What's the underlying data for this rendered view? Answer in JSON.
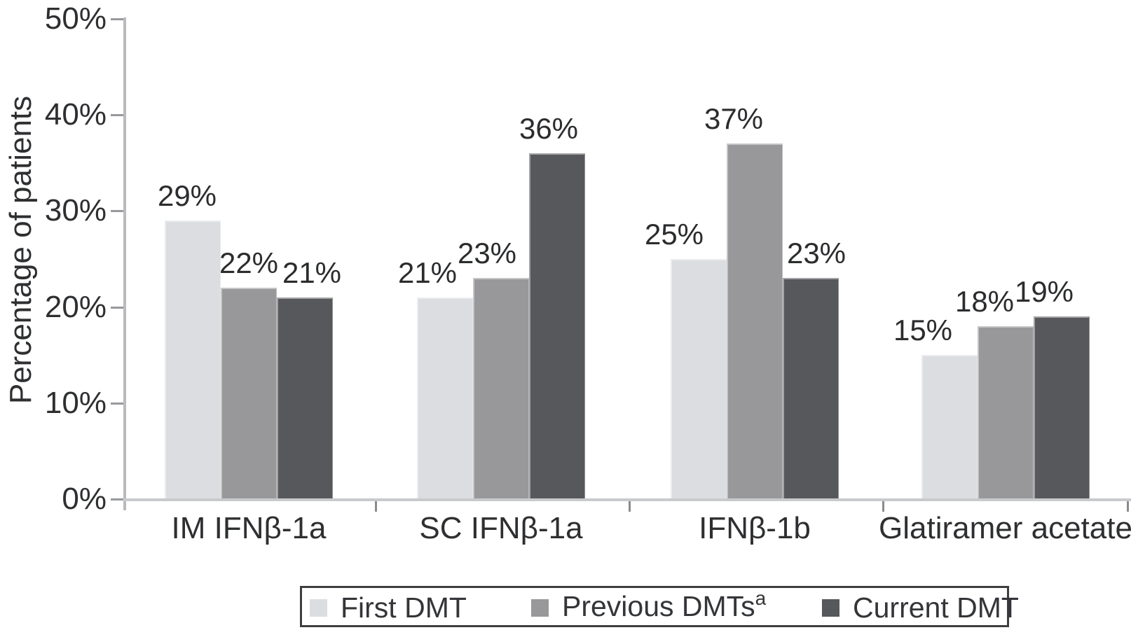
{
  "chart_data": {
    "type": "bar",
    "title": "",
    "ylabel": "Percentage of patients",
    "xlabel": "",
    "ylim": [
      0,
      50
    ],
    "yticks": [
      {
        "value": 0,
        "label": "0%"
      },
      {
        "value": 10,
        "label": "10%"
      },
      {
        "value": 20,
        "label": "20%"
      },
      {
        "value": 30,
        "label": "30%"
      },
      {
        "value": 40,
        "label": "40%"
      },
      {
        "value": 50,
        "label": "50%"
      }
    ],
    "grid": false,
    "legend_position": "bottom",
    "categories": [
      "IM IFNβ-1a",
      "SC IFNβ-1a",
      "IFNβ-1b",
      "Glatiramer acetate"
    ],
    "series": [
      {
        "name": "First DMT",
        "superscript": "",
        "color": "#dcdde0",
        "values": [
          29,
          21,
          25,
          15
        ],
        "value_labels": [
          "29%",
          "21%",
          "25%",
          "15%"
        ]
      },
      {
        "name": "Previous DMTs",
        "superscript": "a",
        "color": "#98989b",
        "values": [
          22,
          23,
          37,
          18
        ],
        "value_labels": [
          "22%",
          "23%",
          "37%",
          "18%"
        ]
      },
      {
        "name": "Current DMT",
        "superscript": "",
        "color": "#57585b",
        "values": [
          21,
          36,
          23,
          19
        ],
        "value_labels": [
          "21%",
          "36%",
          "23%",
          "19%"
        ]
      }
    ]
  }
}
